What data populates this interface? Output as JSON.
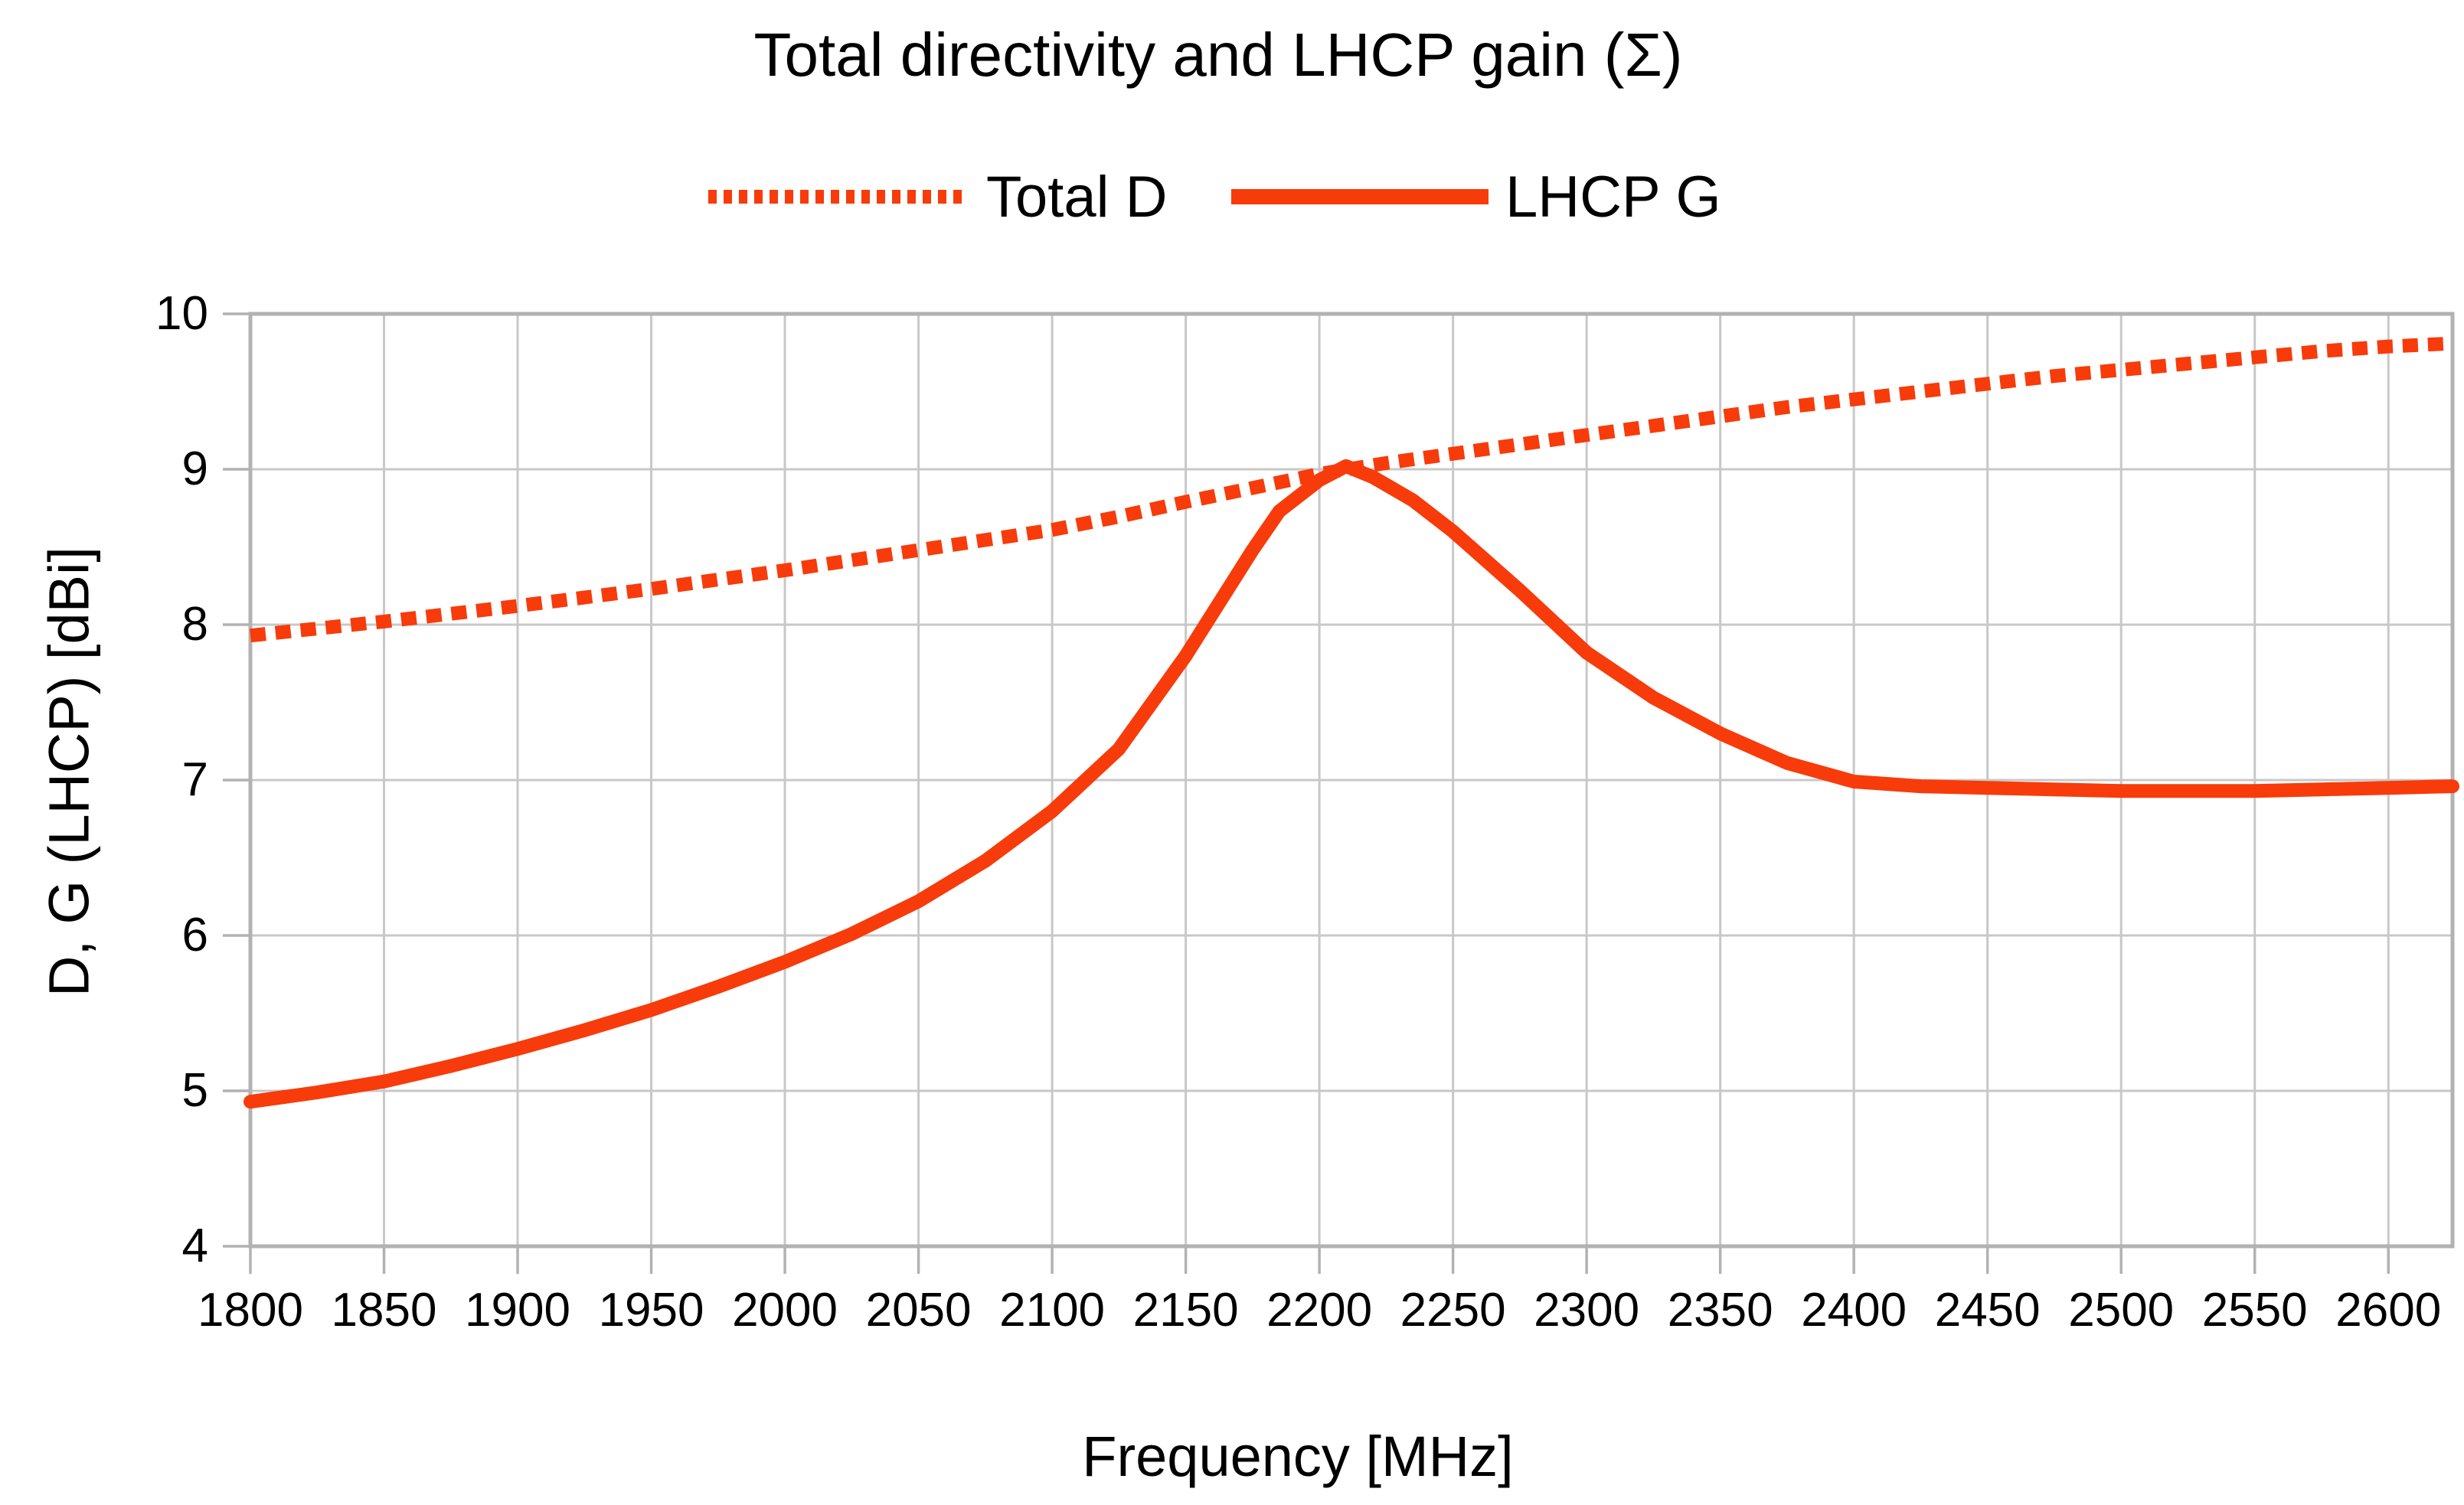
{
  "chart_data": {
    "type": "line",
    "title": "Total directivity and LHCP gain (Σ)",
    "xlabel": "Frequency [MHz]",
    "ylabel": "D, G (LHCP) [dBi]",
    "xlim": [
      1800,
      2624
    ],
    "ylim": [
      4,
      10
    ],
    "x_ticks": [
      1800,
      1850,
      1900,
      1950,
      2000,
      2050,
      2100,
      2150,
      2200,
      2250,
      2300,
      2350,
      2400,
      2450,
      2500,
      2550,
      2600
    ],
    "y_ticks": [
      4,
      5,
      6,
      7,
      8,
      9,
      10
    ],
    "grid": true,
    "legend_position": "top",
    "legend_entries": [
      "Total D",
      "LHCP G"
    ],
    "series": [
      {
        "name": "Total D",
        "style": "dotted",
        "color": "#f83b0a",
        "points": [
          [
            1800,
            7.93
          ],
          [
            1825,
            7.975
          ],
          [
            1850,
            8.02
          ],
          [
            1875,
            8.07
          ],
          [
            1900,
            8.12
          ],
          [
            1925,
            8.175
          ],
          [
            1950,
            8.23
          ],
          [
            1975,
            8.29
          ],
          [
            2000,
            8.35
          ],
          [
            2025,
            8.415
          ],
          [
            2050,
            8.48
          ],
          [
            2075,
            8.545
          ],
          [
            2100,
            8.61
          ],
          [
            2125,
            8.695
          ],
          [
            2150,
            8.79
          ],
          [
            2175,
            8.88
          ],
          [
            2200,
            8.97
          ],
          [
            2225,
            9.04
          ],
          [
            2250,
            9.1
          ],
          [
            2275,
            9.16
          ],
          [
            2300,
            9.22
          ],
          [
            2325,
            9.28
          ],
          [
            2350,
            9.34
          ],
          [
            2375,
            9.4
          ],
          [
            2400,
            9.45
          ],
          [
            2425,
            9.5
          ],
          [
            2450,
            9.55
          ],
          [
            2475,
            9.6
          ],
          [
            2500,
            9.64
          ],
          [
            2525,
            9.68
          ],
          [
            2550,
            9.72
          ],
          [
            2575,
            9.76
          ],
          [
            2600,
            9.79
          ],
          [
            2624,
            9.81
          ]
        ]
      },
      {
        "name": "LHCP G",
        "style": "solid",
        "color": "#f83b0a",
        "points": [
          [
            1800,
            4.93
          ],
          [
            1825,
            4.99
          ],
          [
            1850,
            5.06
          ],
          [
            1875,
            5.16
          ],
          [
            1900,
            5.27
          ],
          [
            1925,
            5.39
          ],
          [
            1950,
            5.52
          ],
          [
            1975,
            5.67
          ],
          [
            2000,
            5.83
          ],
          [
            2025,
            6.01
          ],
          [
            2050,
            6.22
          ],
          [
            2075,
            6.48
          ],
          [
            2100,
            6.8
          ],
          [
            2125,
            7.2
          ],
          [
            2150,
            7.8
          ],
          [
            2175,
            8.48
          ],
          [
            2185,
            8.73
          ],
          [
            2200,
            8.93
          ],
          [
            2210,
            9.02
          ],
          [
            2220,
            8.95
          ],
          [
            2235,
            8.8
          ],
          [
            2250,
            8.6
          ],
          [
            2275,
            8.22
          ],
          [
            2300,
            7.82
          ],
          [
            2325,
            7.53
          ],
          [
            2350,
            7.3
          ],
          [
            2375,
            7.11
          ],
          [
            2400,
            6.99
          ],
          [
            2425,
            6.96
          ],
          [
            2450,
            6.95
          ],
          [
            2475,
            6.94
          ],
          [
            2500,
            6.93
          ],
          [
            2525,
            6.93
          ],
          [
            2550,
            6.93
          ],
          [
            2575,
            6.94
          ],
          [
            2600,
            6.95
          ],
          [
            2624,
            6.96
          ]
        ]
      }
    ]
  },
  "colors": {
    "accent": "#f83b0a",
    "gridline": "#c8c8c8",
    "frame": "#b2b2b2",
    "text": "#000000",
    "background": "#ffffff"
  }
}
